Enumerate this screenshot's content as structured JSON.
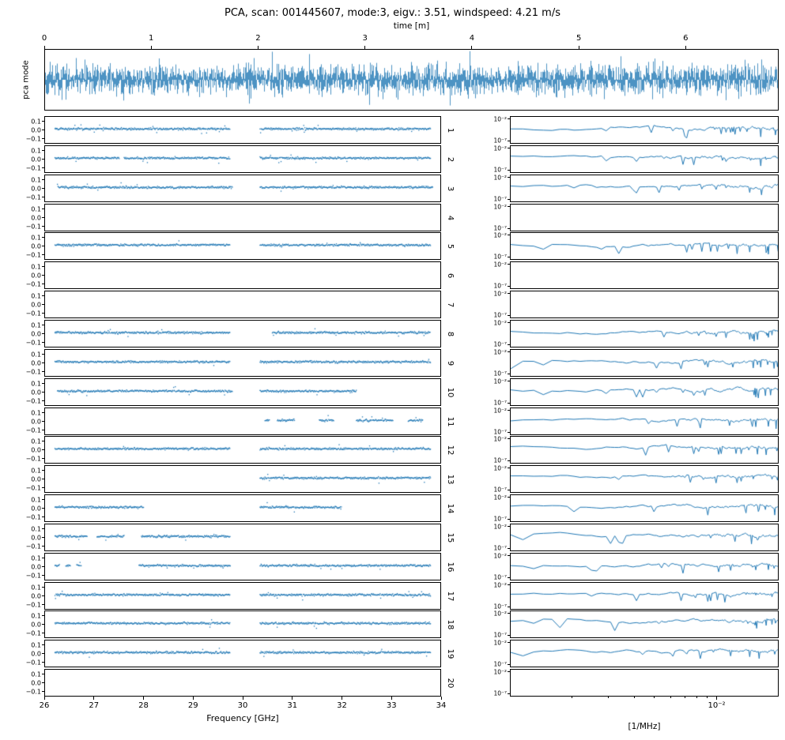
{
  "chart_data": {
    "type": "multi-panel",
    "title": "PCA, scan: 001445607, mode:3, eigv.: 3.51, windspeed: 4.21 m/s",
    "series_color": "#1f77b4",
    "top_panel": {
      "type": "line",
      "xlabel": "time [m]",
      "ylabel": "pca mode",
      "x_ticks": [
        0,
        1,
        2,
        3,
        4,
        5,
        6
      ],
      "x_range": [
        0,
        6.87
      ],
      "ylim": [
        -1,
        1
      ],
      "noise": {
        "typical": 0.5,
        "spike": 1.0
      },
      "description": "dense noisy PCA mode time series spanning 0 to ~6.87 minutes"
    },
    "left_panels": {
      "type": "scatter",
      "xlabel": "Frequency [GHz]",
      "x_ticks": [
        26,
        27,
        28,
        29,
        30,
        31,
        32,
        33,
        34
      ],
      "x_range": [
        26,
        34
      ],
      "y_ticks": [
        "0.1",
        "0.0",
        "−0.1"
      ],
      "y_tick_values": [
        0.1,
        0.0,
        -0.1
      ],
      "ylim": [
        -0.15,
        0.15
      ],
      "band_center": 0.012,
      "band_sigma": 0.012,
      "rows": [
        {
          "label": "1",
          "segments_ghz": [
            [
              26.2,
              29.75
            ],
            [
              30.35,
              33.8
            ]
          ]
        },
        {
          "label": "2",
          "segments_ghz": [
            [
              26.2,
              27.5
            ],
            [
              27.6,
              29.75
            ],
            [
              30.35,
              33.8
            ]
          ]
        },
        {
          "label": "3",
          "segments_ghz": [
            [
              26.25,
              29.8
            ],
            [
              30.35,
              33.85
            ]
          ]
        },
        {
          "label": "4",
          "segments_ghz": []
        },
        {
          "label": "5",
          "segments_ghz": [
            [
              26.2,
              29.75
            ],
            [
              30.35,
              33.8
            ]
          ]
        },
        {
          "label": "6",
          "segments_ghz": []
        },
        {
          "label": "7",
          "segments_ghz": []
        },
        {
          "label": "8",
          "segments_ghz": [
            [
              26.2,
              29.75
            ],
            [
              30.6,
              33.8
            ]
          ]
        },
        {
          "label": "9",
          "segments_ghz": [
            [
              26.2,
              29.75
            ],
            [
              30.35,
              33.8
            ]
          ]
        },
        {
          "label": "10",
          "segments_ghz": [
            [
              26.25,
              29.8
            ],
            [
              30.35,
              32.3
            ]
          ]
        },
        {
          "label": "11",
          "segments_ghz": [
            [
              30.45,
              30.55
            ],
            [
              30.7,
              31.05
            ],
            [
              31.55,
              31.85
            ],
            [
              32.3,
              33.05
            ],
            [
              33.35,
              33.65
            ]
          ]
        },
        {
          "label": "12",
          "segments_ghz": [
            [
              26.2,
              29.75
            ],
            [
              30.35,
              33.8
            ]
          ]
        },
        {
          "label": "13",
          "segments_ghz": [
            [
              30.35,
              33.8
            ]
          ]
        },
        {
          "label": "14",
          "segments_ghz": [
            [
              26.2,
              28.0
            ],
            [
              30.35,
              32.0
            ]
          ]
        },
        {
          "label": "15",
          "segments_ghz": [
            [
              26.2,
              26.85
            ],
            [
              27.05,
              27.6
            ],
            [
              27.95,
              29.75
            ]
          ]
        },
        {
          "label": "16",
          "segments_ghz": [
            [
              26.2,
              26.3
            ],
            [
              26.42,
              26.52
            ],
            [
              26.64,
              26.74
            ],
            [
              27.9,
              29.75
            ],
            [
              30.35,
              33.8
            ]
          ]
        },
        {
          "label": "17",
          "segments_ghz": [
            [
              26.2,
              29.75
            ],
            [
              30.35,
              33.8
            ]
          ]
        },
        {
          "label": "18",
          "segments_ghz": [
            [
              26.2,
              29.75
            ],
            [
              30.35,
              33.8
            ]
          ]
        },
        {
          "label": "19",
          "segments_ghz": [
            [
              26.2,
              29.75
            ],
            [
              30.35,
              33.8
            ]
          ]
        },
        {
          "label": "20",
          "segments_ghz": []
        }
      ]
    },
    "right_panels": {
      "type": "line",
      "xscale": "log",
      "yscale": "log",
      "xlabel": "[1/MHz]",
      "x_tick_labels": [
        "10⁻²"
      ],
      "x_tick_values": [
        0.01
      ],
      "x_range": [
        0.001,
        0.02
      ],
      "y_tick_labels": [
        "10⁻²",
        "10⁻⁷"
      ],
      "y_tick_values_log10": [
        -2,
        -7
      ],
      "ylim_log10": [
        -7.5,
        -1.5
      ],
      "level_log10": -4.0,
      "description": "power spectra of each pca mode row; smooth at low 1/MHz, noisy with downward dips at high 1/MHz",
      "rows": [
        {
          "row": 1,
          "has_data": true
        },
        {
          "row": 2,
          "has_data": true
        },
        {
          "row": 3,
          "has_data": true
        },
        {
          "row": 4,
          "has_data": false
        },
        {
          "row": 5,
          "has_data": true
        },
        {
          "row": 6,
          "has_data": false
        },
        {
          "row": 7,
          "has_data": false
        },
        {
          "row": 8,
          "has_data": true
        },
        {
          "row": 9,
          "has_data": true
        },
        {
          "row": 10,
          "has_data": true
        },
        {
          "row": 11,
          "has_data": true
        },
        {
          "row": 12,
          "has_data": true
        },
        {
          "row": 13,
          "has_data": true
        },
        {
          "row": 14,
          "has_data": true
        },
        {
          "row": 15,
          "has_data": true
        },
        {
          "row": 16,
          "has_data": true
        },
        {
          "row": 17,
          "has_data": true
        },
        {
          "row": 18,
          "has_data": true
        },
        {
          "row": 19,
          "has_data": true
        },
        {
          "row": 20,
          "has_data": false
        }
      ]
    }
  }
}
